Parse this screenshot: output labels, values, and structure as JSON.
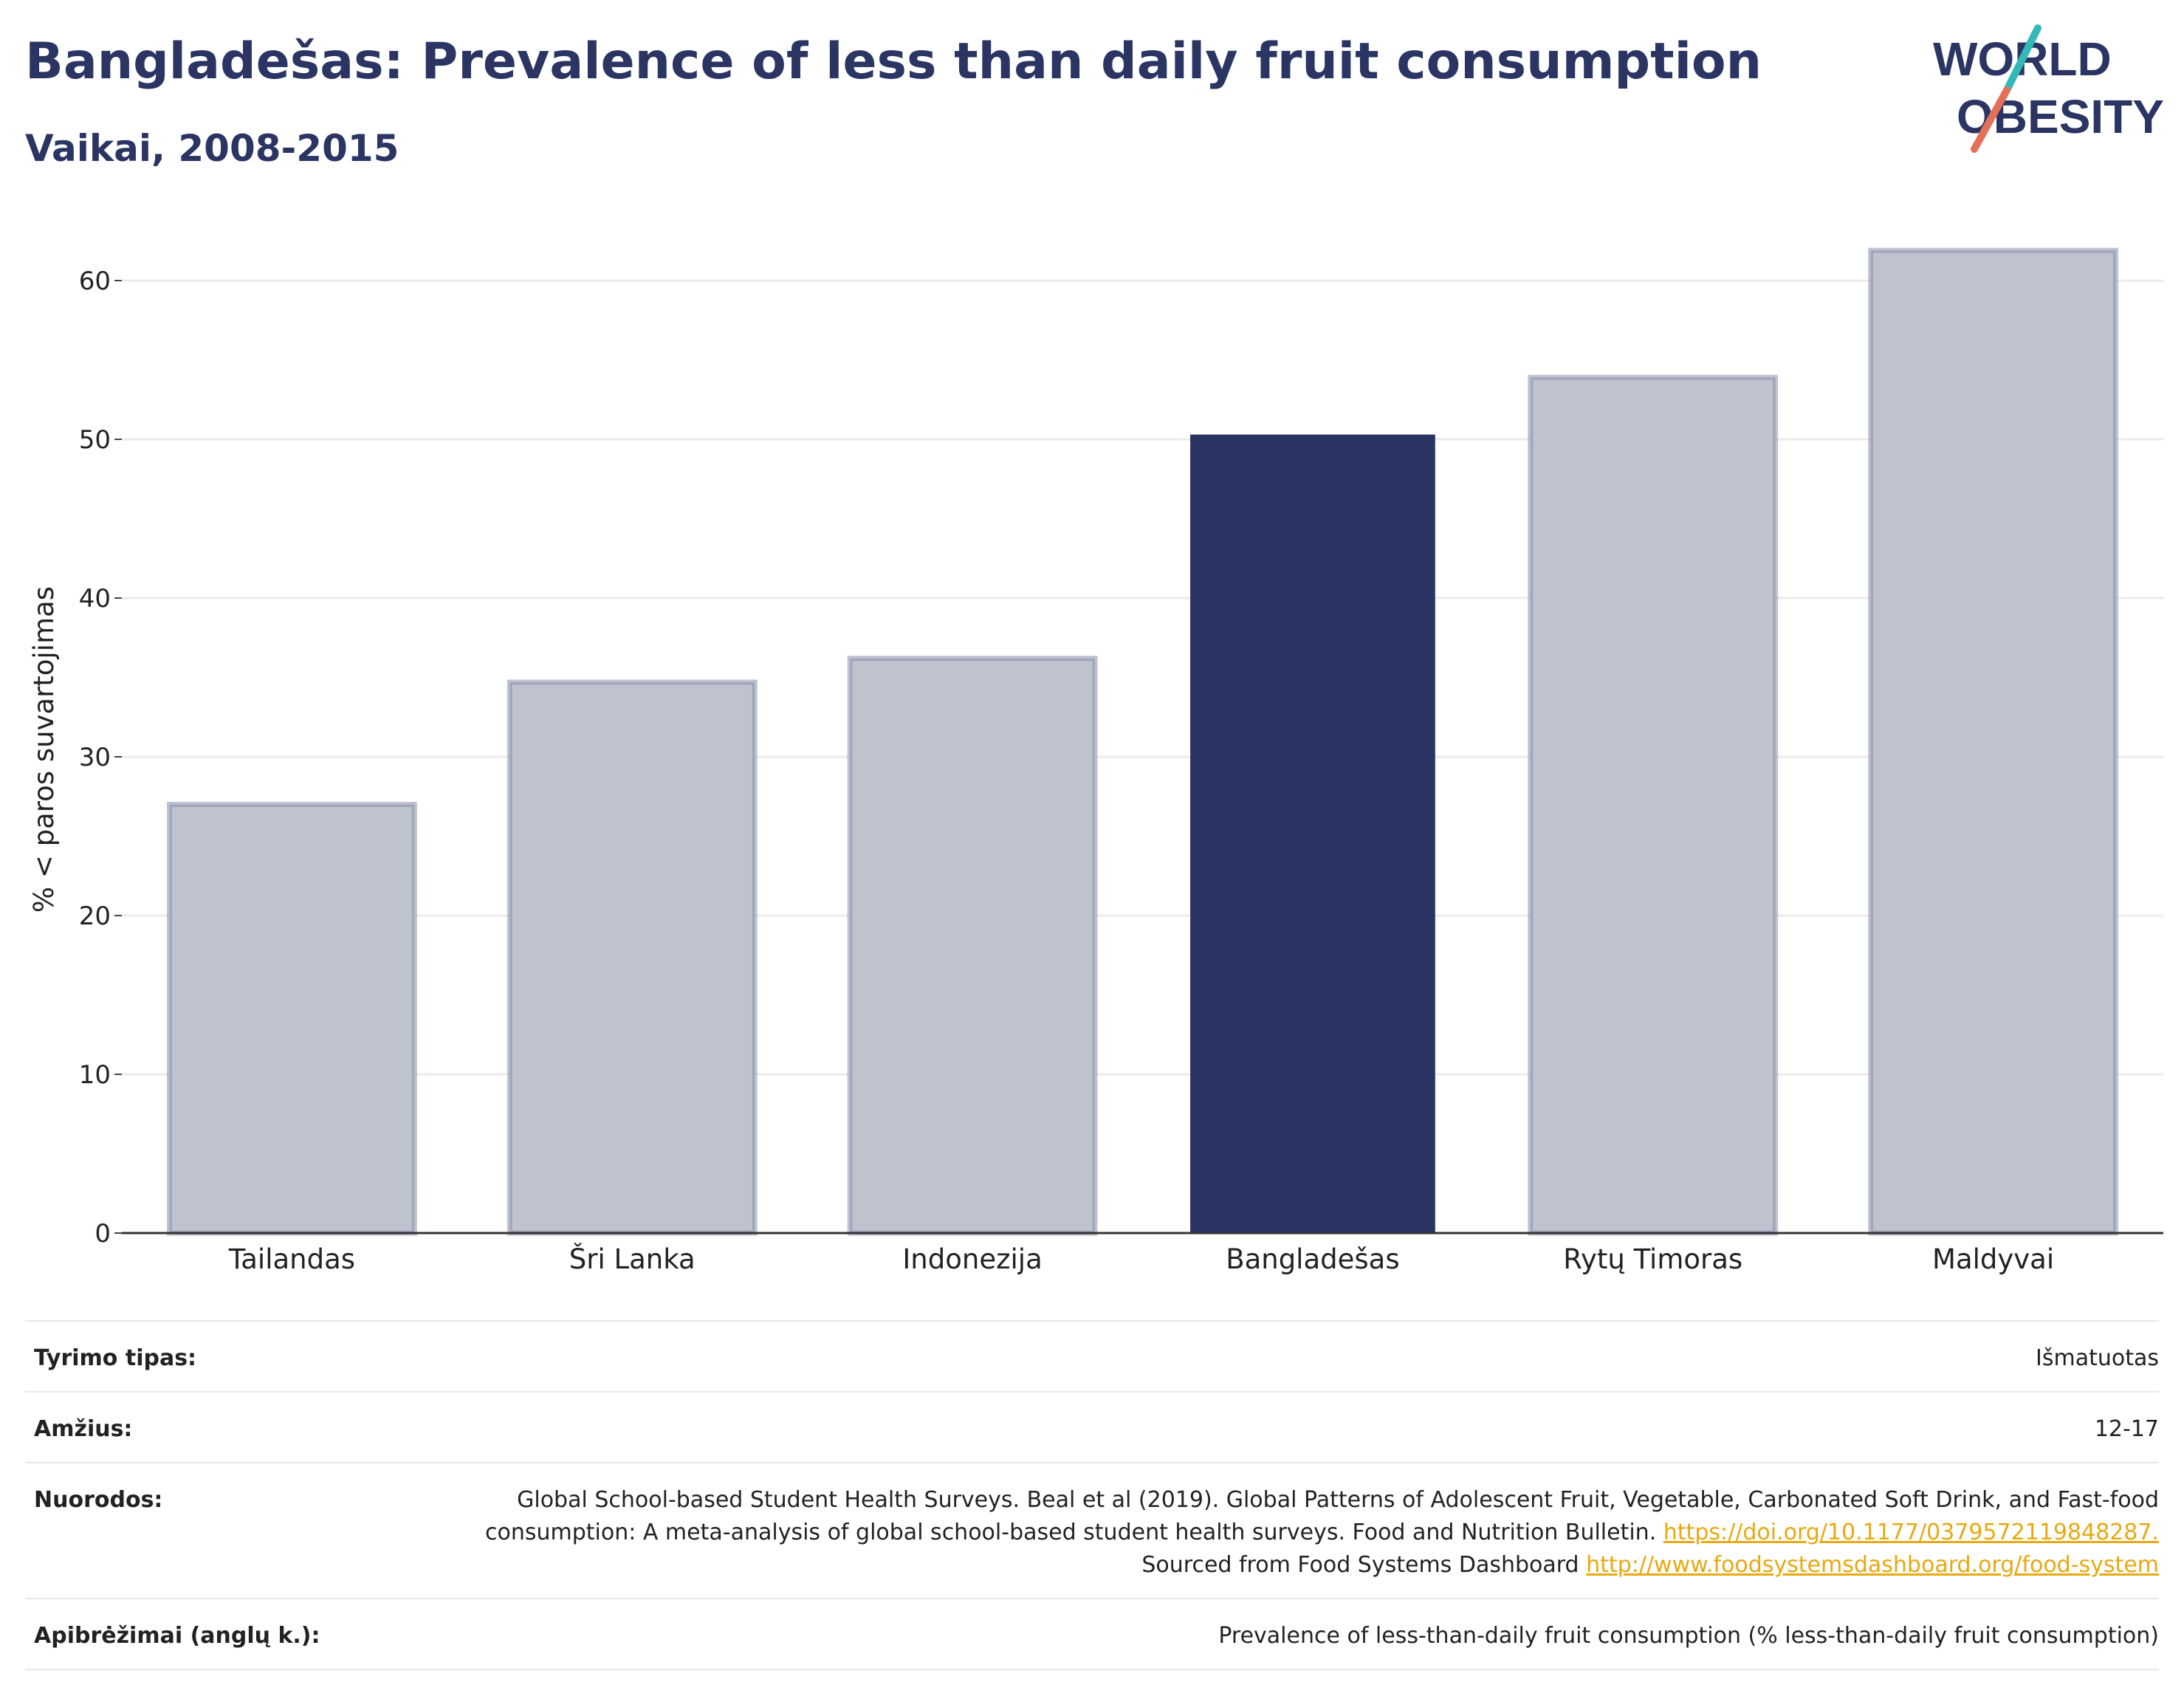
{
  "header": {
    "title": "Bangladešas: Prevalence of less than daily fruit consumption",
    "subtitle": "Vaikai, 2008-2015"
  },
  "logo": {
    "line1": "WORLD",
    "line2": "OBESITY",
    "colors": {
      "text": "#2b3563",
      "slash_top": "#33b8b8",
      "slash_bottom": "#e5705a"
    }
  },
  "chart_data": {
    "type": "bar",
    "categories": [
      "Tailandas",
      "Šri Lanka",
      "Indonezija",
      "Bangladešas",
      "Rytų Timoras",
      "Maldyvai"
    ],
    "values": [
      27.0,
      34.7,
      36.2,
      50.3,
      53.9,
      61.9
    ],
    "highlight_category": "Bangladešas",
    "ylabel": "% < paros suvartojimas",
    "xlabel": "",
    "ylim": [
      0,
      63
    ],
    "yticks": [
      0,
      10,
      20,
      30,
      40,
      50,
      60
    ],
    "grid": true,
    "colors": {
      "highlight": "#2b3563",
      "bar_fill": "#bfc3ce",
      "bar_stroke": "#8990ab"
    }
  },
  "info": {
    "study_type": {
      "label": "Tyrimo tipas:",
      "value": "Išmatuotas"
    },
    "age": {
      "label": "Amžius:",
      "value": "12-17"
    },
    "references": {
      "label": "Nuorodos:",
      "text1": "Global School-based Student Health Surveys. Beal et al (2019). Global Patterns of Adolescent Fruit, Vegetable, Carbonated Soft Drink, and Fast-food consumption: A meta-analysis of global school-based student health surveys. Food and Nutrition Bulletin.",
      "link1": "https://doi.org/10.1177/0379572119848287.",
      "text2": "Sourced from Food Systems Dashboard",
      "link2": "http://www.foodsystemsdashboard.org/food-system"
    },
    "definitions": {
      "label": "Apibrėžimai (anglų k.):",
      "value": "Prevalence of less-than-daily fruit consumption (% less-than-daily fruit consumption)"
    }
  }
}
